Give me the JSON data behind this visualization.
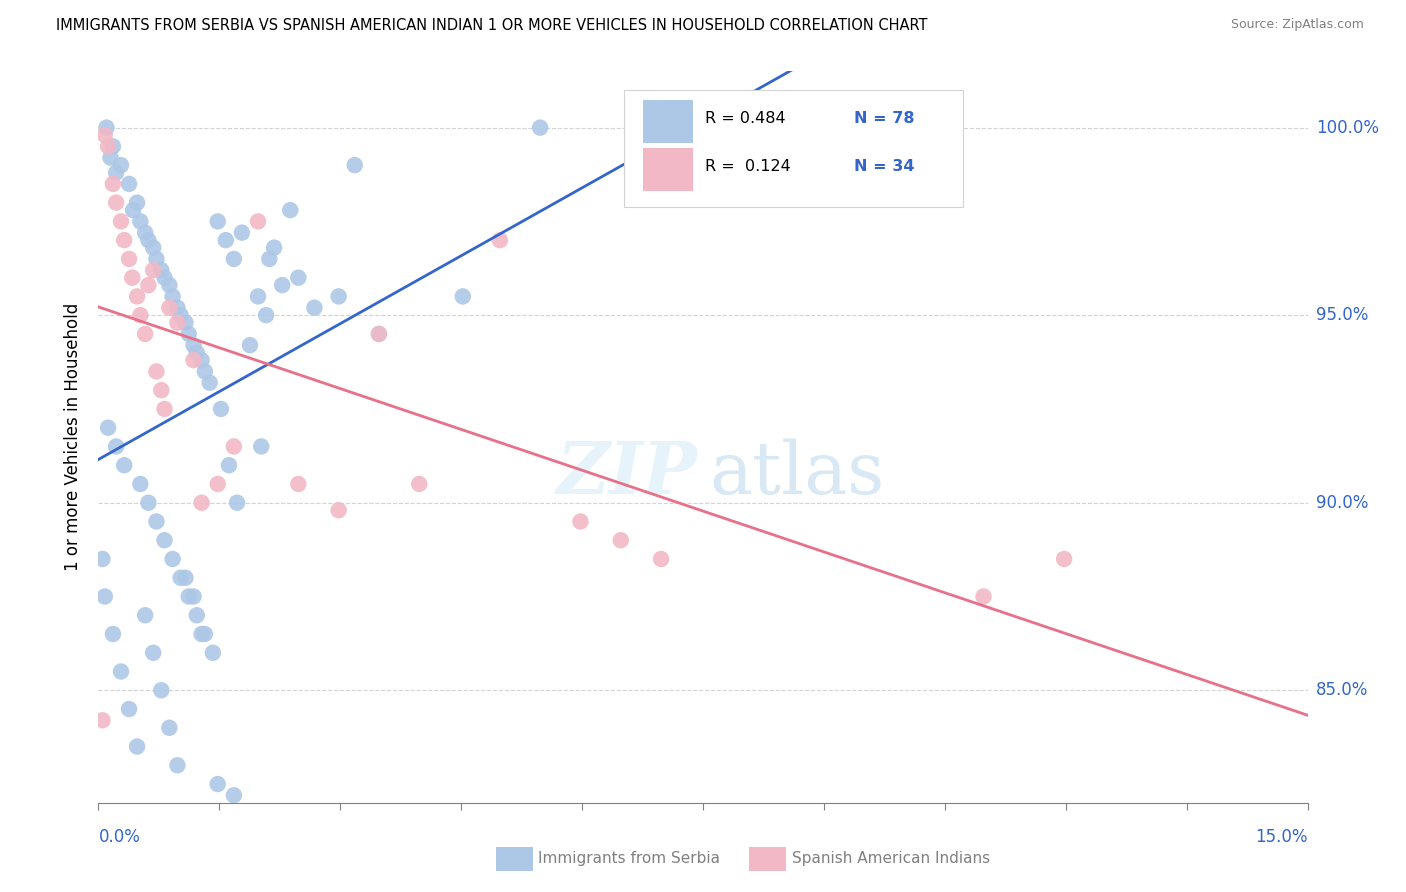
{
  "title": "IMMIGRANTS FROM SERBIA VS SPANISH AMERICAN INDIAN 1 OR MORE VEHICLES IN HOUSEHOLD CORRELATION CHART",
  "source": "Source: ZipAtlas.com",
  "ylabel_label": "1 or more Vehicles in Household",
  "xmin": 0.0,
  "xmax": 15.0,
  "ymin": 82.0,
  "ymax": 101.5,
  "yticks": [
    85.0,
    90.0,
    95.0,
    100.0
  ],
  "ytick_labels": [
    "85.0%",
    "90.0%",
    "95.0%",
    "100.0%"
  ],
  "xticks": [
    0.0,
    1.5,
    3.0,
    4.5,
    6.0,
    7.5,
    9.0,
    10.5,
    12.0,
    13.5,
    15.0
  ],
  "blue_color": "#adc8e6",
  "pink_color": "#f2b8c6",
  "blue_line_color": "#3366cc",
  "pink_line_color": "#e87088",
  "legend_r_color": "#3366cc",
  "serbia_x": [
    0.1,
    0.18,
    0.15,
    0.28,
    0.22,
    0.38,
    0.48,
    0.43,
    0.52,
    0.58,
    0.62,
    0.68,
    0.72,
    0.78,
    0.82,
    0.88,
    0.92,
    0.98,
    1.02,
    1.08,
    1.12,
    1.18,
    1.22,
    1.28,
    1.32,
    1.38,
    1.48,
    1.58,
    1.68,
    1.78,
    1.88,
    1.98,
    2.08,
    2.18,
    2.28,
    2.38,
    2.48,
    2.68,
    2.98,
    3.18,
    0.05,
    0.08,
    0.18,
    0.28,
    0.38,
    0.48,
    0.58,
    0.68,
    0.78,
    0.88,
    0.98,
    1.08,
    1.18,
    1.28,
    1.48,
    1.68,
    0.12,
    0.22,
    0.32,
    0.52,
    0.62,
    0.72,
    0.82,
    0.92,
    1.02,
    1.12,
    1.22,
    1.32,
    1.42,
    1.52,
    1.62,
    1.72,
    2.02,
    2.12,
    3.48,
    4.52,
    5.48,
    7.05
  ],
  "serbia_y": [
    100.0,
    99.5,
    99.2,
    99.0,
    98.8,
    98.5,
    98.0,
    97.8,
    97.5,
    97.2,
    97.0,
    96.8,
    96.5,
    96.2,
    96.0,
    95.8,
    95.5,
    95.2,
    95.0,
    94.8,
    94.5,
    94.2,
    94.0,
    93.8,
    93.5,
    93.2,
    97.5,
    97.0,
    96.5,
    97.2,
    94.2,
    95.5,
    95.0,
    96.8,
    95.8,
    97.8,
    96.0,
    95.2,
    95.5,
    99.0,
    88.5,
    87.5,
    86.5,
    85.5,
    84.5,
    83.5,
    87.0,
    86.0,
    85.0,
    84.0,
    83.0,
    88.0,
    87.5,
    86.5,
    82.5,
    82.2,
    92.0,
    91.5,
    91.0,
    90.5,
    90.0,
    89.5,
    89.0,
    88.5,
    88.0,
    87.5,
    87.0,
    86.5,
    86.0,
    92.5,
    91.0,
    90.0,
    91.5,
    96.5,
    94.5,
    95.5,
    100.0,
    100.2
  ],
  "spanish_x": [
    0.05,
    0.08,
    0.12,
    0.18,
    0.22,
    0.28,
    0.32,
    0.38,
    0.42,
    0.48,
    0.52,
    0.58,
    0.62,
    0.68,
    0.72,
    0.78,
    0.82,
    0.88,
    0.98,
    1.18,
    1.28,
    1.48,
    1.68,
    1.98,
    2.48,
    2.98,
    3.48,
    3.98,
    4.98,
    5.98,
    6.48,
    6.98,
    10.98,
    11.98
  ],
  "spanish_y": [
    84.2,
    99.8,
    99.5,
    98.5,
    98.0,
    97.5,
    97.0,
    96.5,
    96.0,
    95.5,
    95.0,
    94.5,
    95.8,
    96.2,
    93.5,
    93.0,
    92.5,
    95.2,
    94.8,
    93.8,
    90.0,
    90.5,
    91.5,
    97.5,
    90.5,
    89.8,
    94.5,
    90.5,
    97.0,
    89.5,
    89.0,
    88.5,
    87.5,
    88.5
  ]
}
